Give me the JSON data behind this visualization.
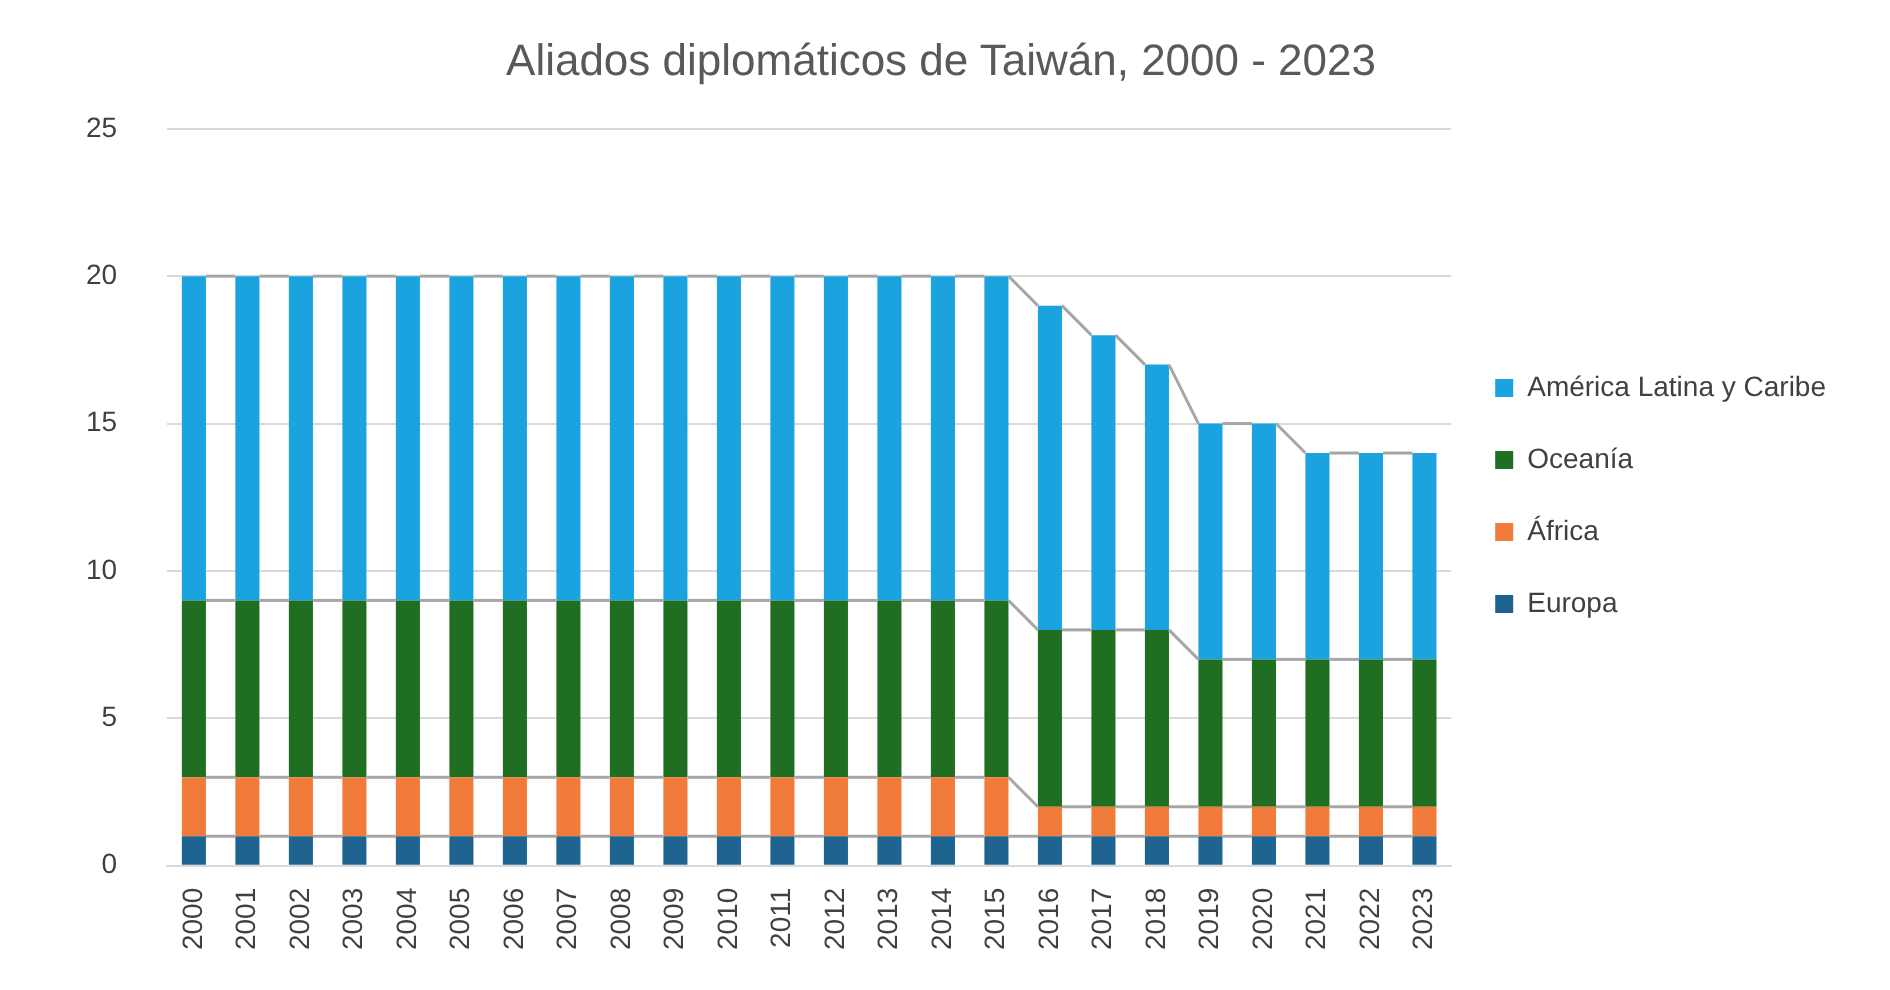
{
  "chart_data": {
    "type": "bar",
    "title": "Aliados diplomáticos de Taiwán, 2000 - 2023",
    "stacked": true,
    "categories": [
      "2000",
      "2001",
      "2002",
      "2003",
      "2004",
      "2005",
      "2006",
      "2007",
      "2008",
      "2009",
      "2010",
      "2011",
      "2012",
      "2013",
      "2014",
      "2015",
      "2016",
      "2017",
      "2018",
      "2019",
      "2020",
      "2021",
      "2022",
      "2023"
    ],
    "series": [
      {
        "name": "Europa",
        "color": "#1f6391",
        "values": [
          1,
          1,
          1,
          1,
          1,
          1,
          1,
          1,
          1,
          1,
          1,
          1,
          1,
          1,
          1,
          1,
          1,
          1,
          1,
          1,
          1,
          1,
          1,
          1
        ]
      },
      {
        "name": "África",
        "color": "#f07b3a",
        "values": [
          2,
          2,
          2,
          2,
          2,
          2,
          2,
          2,
          2,
          2,
          2,
          2,
          2,
          2,
          2,
          2,
          1,
          1,
          1,
          1,
          1,
          1,
          1,
          1
        ]
      },
      {
        "name": "Oceanía",
        "color": "#1f6e22",
        "values": [
          6,
          6,
          6,
          6,
          6,
          6,
          6,
          6,
          6,
          6,
          6,
          6,
          6,
          6,
          6,
          6,
          6,
          6,
          6,
          5,
          5,
          5,
          5,
          5
        ]
      },
      {
        "name": "América Latina y Caribe",
        "color": "#1ba3e0",
        "values": [
          11,
          11,
          11,
          11,
          11,
          11,
          11,
          11,
          11,
          11,
          11,
          11,
          11,
          11,
          11,
          11,
          11,
          10,
          9,
          8,
          8,
          7,
          7,
          7
        ]
      }
    ],
    "ylim": [
      0,
      25
    ],
    "yticks": [
      0,
      5,
      10,
      15,
      20,
      25
    ],
    "grid": "y",
    "legend": "right"
  }
}
